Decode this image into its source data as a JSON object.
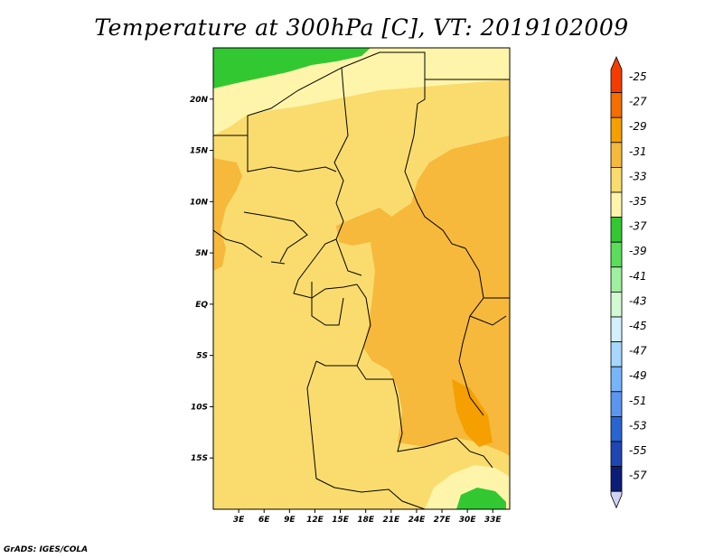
{
  "title": "Temperature at 300hPa [C], VT: 2019102009",
  "credit": "GrADS: IGES/COLA",
  "map": {
    "lon_labels": [
      "3E",
      "6E",
      "9E",
      "12E",
      "15E",
      "18E",
      "21E",
      "24E",
      "27E",
      "30E",
      "33E"
    ],
    "lat_labels": [
      "20N",
      "15N",
      "10N",
      "5N",
      "EQ",
      "5S",
      "10S",
      "15S"
    ],
    "lon_range": [
      0,
      35
    ],
    "lat_range": [
      -20,
      25
    ]
  },
  "colorbar": {
    "labels": [
      "-25",
      "-27",
      "-29",
      "-31",
      "-33",
      "-35",
      "-37",
      "-39",
      "-41",
      "-43",
      "-45",
      "-47",
      "-49",
      "-51",
      "-53",
      "-55",
      "-57"
    ],
    "colors": [
      "#f53c00",
      "#f56e00",
      "#f5a000",
      "#f6b93c",
      "#fadc6e",
      "#fff5aa",
      "#32c832",
      "#5ade5a",
      "#9ef09e",
      "#d2fad2",
      "#d2f0ff",
      "#a5d7ff",
      "#78b4fa",
      "#5a96f0",
      "#2864d2",
      "#1e46b4",
      "#0a1e78",
      "#000064"
    ]
  },
  "fields": {
    "color_bg": "#fadc6e",
    "color_warm": "#f6b93c",
    "color_warmer": "#f5a000",
    "color_cool": "#fff5aa",
    "color_green": "#32c832"
  }
}
